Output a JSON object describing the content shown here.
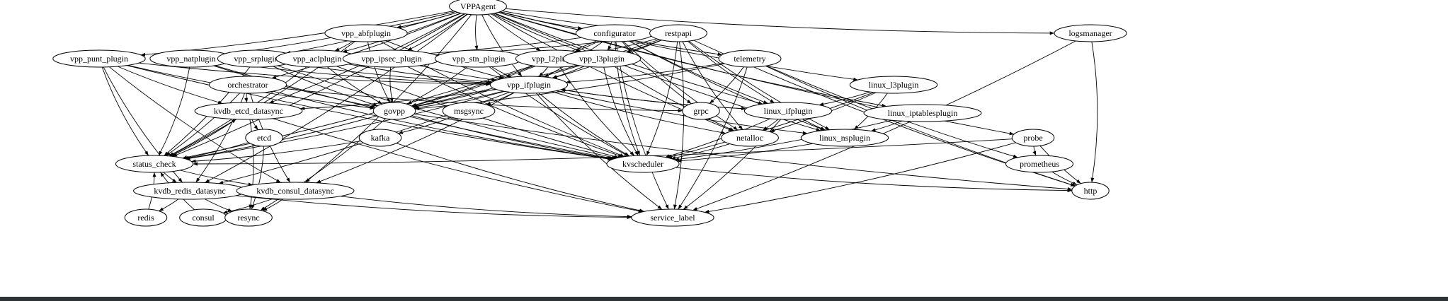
{
  "graph": {
    "nodes": [
      {
        "id": "VPPAgent",
        "label": "VPPAgent"
      },
      {
        "id": "vpp_abfplugin",
        "label": "vpp_abfplugin"
      },
      {
        "id": "configurator",
        "label": "configurator"
      },
      {
        "id": "restpapi",
        "label": "restpapi"
      },
      {
        "id": "logsmanager",
        "label": "logsmanager"
      },
      {
        "id": "vpp_punt_plugin",
        "label": "vpp_punt_plugin"
      },
      {
        "id": "vpp_natplugin",
        "label": "vpp_natplugin"
      },
      {
        "id": "vpp_srplugin",
        "label": "vpp_srplugin"
      },
      {
        "id": "vpp_aclplugin",
        "label": "vpp_aclplugin"
      },
      {
        "id": "vpp_ipsec_plugin",
        "label": "vpp_ipsec_plugin"
      },
      {
        "id": "vpp_stn_plugin",
        "label": "vpp_stn_plugin"
      },
      {
        "id": "vpp_l2plugin",
        "label": "vpp_l2plugin"
      },
      {
        "id": "vpp_l3plugin",
        "label": "vpp_l3plugin"
      },
      {
        "id": "telemetry",
        "label": "telemetry"
      },
      {
        "id": "linux_l3plugin",
        "label": "linux_l3plugin"
      },
      {
        "id": "orchestrator",
        "label": "orchestrator"
      },
      {
        "id": "vpp_ifplugin",
        "label": "vpp_ifplugin"
      },
      {
        "id": "kvdb_etcd_datasync",
        "label": "kvdb_etcd_datasync"
      },
      {
        "id": "govpp",
        "label": "govpp"
      },
      {
        "id": "msgsync",
        "label": "msgsync"
      },
      {
        "id": "grpc",
        "label": "grpc"
      },
      {
        "id": "linux_ifplugin",
        "label": "linux_ifplugin"
      },
      {
        "id": "linux_iptablesplugin",
        "label": "linux_iptablesplugin"
      },
      {
        "id": "etcd",
        "label": "etcd"
      },
      {
        "id": "kafka",
        "label": "kafka"
      },
      {
        "id": "netalloc",
        "label": "netalloc"
      },
      {
        "id": "linux_nsplugin",
        "label": "linux_nsplugin"
      },
      {
        "id": "probe",
        "label": "probe"
      },
      {
        "id": "status_check",
        "label": "status_check"
      },
      {
        "id": "kvscheduler",
        "label": "kvscheduler"
      },
      {
        "id": "prometheus",
        "label": "prometheus"
      },
      {
        "id": "kvdb_redis_datasync",
        "label": "kvdb_redis_datasync"
      },
      {
        "id": "kvdb_consul_datasync",
        "label": "kvdb_consul_datasync"
      },
      {
        "id": "http",
        "label": "http"
      },
      {
        "id": "redis",
        "label": "redis"
      },
      {
        "id": "consul",
        "label": "consul"
      },
      {
        "id": "resync",
        "label": "resync"
      },
      {
        "id": "service_label",
        "label": "service_label"
      }
    ],
    "edges": [
      [
        "VPPAgent",
        "vpp_abfplugin"
      ],
      [
        "VPPAgent",
        "configurator"
      ],
      [
        "VPPAgent",
        "restpapi"
      ],
      [
        "VPPAgent",
        "logsmanager"
      ],
      [
        "VPPAgent",
        "vpp_punt_plugin"
      ],
      [
        "VPPAgent",
        "vpp_natplugin"
      ],
      [
        "VPPAgent",
        "vpp_srplugin"
      ],
      [
        "VPPAgent",
        "vpp_aclplugin"
      ],
      [
        "VPPAgent",
        "vpp_ipsec_plugin"
      ],
      [
        "VPPAgent",
        "vpp_stn_plugin"
      ],
      [
        "VPPAgent",
        "vpp_l2plugin"
      ],
      [
        "VPPAgent",
        "vpp_l3plugin"
      ],
      [
        "VPPAgent",
        "telemetry"
      ],
      [
        "VPPAgent",
        "vpp_ifplugin"
      ],
      [
        "VPPAgent",
        "linux_l3plugin"
      ],
      [
        "VPPAgent",
        "linux_ifplugin"
      ],
      [
        "VPPAgent",
        "linux_iptablesplugin"
      ],
      [
        "VPPAgent",
        "linux_nsplugin"
      ],
      [
        "VPPAgent",
        "netalloc"
      ],
      [
        "VPPAgent",
        "probe"
      ],
      [
        "VPPAgent",
        "orchestrator"
      ],
      [
        "VPPAgent",
        "kvdb_etcd_datasync"
      ],
      [
        "VPPAgent",
        "status_check"
      ],
      [
        "VPPAgent",
        "kvdb_redis_datasync"
      ],
      [
        "VPPAgent",
        "kvdb_consul_datasync"
      ],
      [
        "vpp_abfplugin",
        "vpp_aclplugin"
      ],
      [
        "vpp_abfplugin",
        "vpp_ifplugin"
      ],
      [
        "vpp_abfplugin",
        "govpp"
      ],
      [
        "vpp_abfplugin",
        "kvscheduler"
      ],
      [
        "vpp_abfplugin",
        "status_check"
      ],
      [
        "configurator",
        "vpp_aclplugin"
      ],
      [
        "configurator",
        "vpp_l2plugin"
      ],
      [
        "configurator",
        "vpp_l3plugin"
      ],
      [
        "configurator",
        "vpp_ifplugin"
      ],
      [
        "configurator",
        "govpp"
      ],
      [
        "configurator",
        "grpc"
      ],
      [
        "configurator",
        "service_label"
      ],
      [
        "configurator",
        "linux_ifplugin"
      ],
      [
        "configurator",
        "netalloc"
      ],
      [
        "configurator",
        "kvscheduler"
      ],
      [
        "configurator",
        "linux_nsplugin"
      ],
      [
        "restpapi",
        "vpp_aclplugin"
      ],
      [
        "restpapi",
        "vpp_l2plugin"
      ],
      [
        "restpapi",
        "vpp_l3plugin"
      ],
      [
        "restpapi",
        "vpp_ifplugin"
      ],
      [
        "restpapi",
        "govpp"
      ],
      [
        "restpapi",
        "service_label"
      ],
      [
        "restpapi",
        "linux_ifplugin"
      ],
      [
        "restpapi",
        "linux_nsplugin"
      ],
      [
        "restpapi",
        "netalloc"
      ],
      [
        "restpapi",
        "http"
      ],
      [
        "restpapi",
        "kvscheduler"
      ],
      [
        "logsmanager",
        "http"
      ],
      [
        "logsmanager",
        "service_label"
      ],
      [
        "vpp_punt_plugin",
        "vpp_ifplugin"
      ],
      [
        "vpp_punt_plugin",
        "govpp"
      ],
      [
        "vpp_punt_plugin",
        "status_check"
      ],
      [
        "vpp_punt_plugin",
        "kvdb_etcd_datasync"
      ],
      [
        "vpp_punt_plugin",
        "kvdb_consul_datasync"
      ],
      [
        "vpp_punt_plugin",
        "kvdb_redis_datasync"
      ],
      [
        "vpp_punt_plugin",
        "kvscheduler"
      ],
      [
        "vpp_natplugin",
        "vpp_ifplugin"
      ],
      [
        "vpp_natplugin",
        "govpp"
      ],
      [
        "vpp_natplugin",
        "kvscheduler"
      ],
      [
        "vpp_natplugin",
        "status_check"
      ],
      [
        "vpp_srplugin",
        "vpp_ifplugin"
      ],
      [
        "vpp_srplugin",
        "govpp"
      ],
      [
        "vpp_srplugin",
        "kvscheduler"
      ],
      [
        "vpp_srplugin",
        "status_check"
      ],
      [
        "vpp_aclplugin",
        "vpp_ifplugin"
      ],
      [
        "vpp_aclplugin",
        "govpp"
      ],
      [
        "vpp_aclplugin",
        "kvscheduler"
      ],
      [
        "vpp_aclplugin",
        "status_check"
      ],
      [
        "vpp_ipsec_plugin",
        "vpp_ifplugin"
      ],
      [
        "vpp_ipsec_plugin",
        "govpp"
      ],
      [
        "vpp_ipsec_plugin",
        "kvscheduler"
      ],
      [
        "vpp_stn_plugin",
        "vpp_ifplugin"
      ],
      [
        "vpp_stn_plugin",
        "govpp"
      ],
      [
        "vpp_stn_plugin",
        "kvscheduler"
      ],
      [
        "vpp_l2plugin",
        "vpp_ifplugin"
      ],
      [
        "vpp_l2plugin",
        "govpp"
      ],
      [
        "vpp_l2plugin",
        "kvscheduler"
      ],
      [
        "vpp_l2plugin",
        "status_check"
      ],
      [
        "vpp_l3plugin",
        "vpp_ifplugin"
      ],
      [
        "vpp_l3plugin",
        "govpp"
      ],
      [
        "vpp_l3plugin",
        "kvscheduler"
      ],
      [
        "vpp_l3plugin",
        "netalloc"
      ],
      [
        "telemetry",
        "vpp_ifplugin"
      ],
      [
        "telemetry",
        "govpp"
      ],
      [
        "telemetry",
        "grpc"
      ],
      [
        "telemetry",
        "prometheus"
      ],
      [
        "telemetry",
        "service_label"
      ],
      [
        "telemetry",
        "http"
      ],
      [
        "orchestrator",
        "kvdb_etcd_datasync"
      ],
      [
        "orchestrator",
        "kvdb_redis_datasync"
      ],
      [
        "orchestrator",
        "kvdb_consul_datasync"
      ],
      [
        "orchestrator",
        "grpc"
      ],
      [
        "orchestrator",
        "kvscheduler"
      ],
      [
        "orchestrator",
        "status_check"
      ],
      [
        "vpp_ifplugin",
        "govpp"
      ],
      [
        "vpp_ifplugin",
        "msgsync"
      ],
      [
        "vpp_ifplugin",
        "linux_ifplugin"
      ],
      [
        "vpp_ifplugin",
        "netalloc"
      ],
      [
        "vpp_ifplugin",
        "kvscheduler"
      ],
      [
        "vpp_ifplugin",
        "service_label"
      ],
      [
        "vpp_ifplugin",
        "kvdb_etcd_datasync"
      ],
      [
        "vpp_ifplugin",
        "kvdb_redis_datasync"
      ],
      [
        "vpp_ifplugin",
        "kvdb_consul_datasync"
      ],
      [
        "vpp_ifplugin",
        "status_check"
      ],
      [
        "vpp_ifplugin",
        "linux_nsplugin"
      ],
      [
        "linux_ifplugin",
        "vpp_ifplugin"
      ],
      [
        "linux_ifplugin",
        "netalloc"
      ],
      [
        "linux_ifplugin",
        "linux_nsplugin"
      ],
      [
        "linux_ifplugin",
        "kvscheduler"
      ],
      [
        "linux_ifplugin",
        "service_label"
      ],
      [
        "linux_l3plugin",
        "linux_ifplugin"
      ],
      [
        "linux_l3plugin",
        "netalloc"
      ],
      [
        "linux_l3plugin",
        "linux_nsplugin"
      ],
      [
        "linux_l3plugin",
        "kvscheduler"
      ],
      [
        "linux_iptablesplugin",
        "linux_nsplugin"
      ],
      [
        "linux_iptablesplugin",
        "kvscheduler"
      ],
      [
        "kvdb_etcd_datasync",
        "etcd"
      ],
      [
        "kvdb_etcd_datasync",
        "resync"
      ],
      [
        "kvdb_etcd_datasync",
        "service_label"
      ],
      [
        "kvdb_etcd_datasync",
        "status_check"
      ],
      [
        "govpp",
        "kvscheduler"
      ],
      [
        "govpp",
        "resync"
      ],
      [
        "govpp",
        "status_check"
      ],
      [
        "govpp",
        "http"
      ],
      [
        "msgsync",
        "kafka"
      ],
      [
        "kafka",
        "status_check"
      ],
      [
        "kafka",
        "service_label"
      ],
      [
        "etcd",
        "status_check"
      ],
      [
        "etcd",
        "resync"
      ],
      [
        "netalloc",
        "kvscheduler"
      ],
      [
        "linux_nsplugin",
        "kvscheduler"
      ],
      [
        "probe",
        "status_check"
      ],
      [
        "probe",
        "prometheus"
      ],
      [
        "probe",
        "http"
      ],
      [
        "probe",
        "service_label"
      ],
      [
        "status_check",
        "kvdb_etcd_datasync"
      ],
      [
        "status_check",
        "kvdb_redis_datasync"
      ],
      [
        "status_check",
        "kvdb_consul_datasync"
      ],
      [
        "kvscheduler",
        "http"
      ],
      [
        "prometheus",
        "http"
      ],
      [
        "kvdb_redis_datasync",
        "redis"
      ],
      [
        "kvdb_redis_datasync",
        "resync"
      ],
      [
        "kvdb_redis_datasync",
        "service_label"
      ],
      [
        "kvdb_consul_datasync",
        "consul"
      ],
      [
        "kvdb_consul_datasync",
        "resync"
      ],
      [
        "kvdb_consul_datasync",
        "service_label"
      ],
      [
        "redis",
        "status_check"
      ],
      [
        "consul",
        "status_check"
      ]
    ]
  }
}
